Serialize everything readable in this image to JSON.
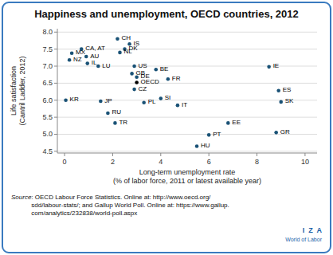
{
  "chart_data": {
    "type": "scatter",
    "title": "Happiness and unemployment, OECD countries, 2012",
    "x_label": "Long-term unemployment rate\n(% of labor force, 2011 or latest available year)",
    "y_label": "Life satisfaction\n(Cantril Ladder, 2012)",
    "xlim": [
      -0.3,
      10.5
    ],
    "ylim": [
      4.45,
      8.1
    ],
    "xticks": [
      0,
      2,
      4,
      6,
      8,
      10
    ],
    "yticks": [
      4.5,
      {
        "value": 5.0,
        "label": "5.0"
      },
      5.5,
      {
        "value": 6.0,
        "label": "6.0"
      },
      6.5,
      {
        "value": 7.0,
        "label": "7.0"
      },
      7.5,
      {
        "value": 8.0,
        "label": "8.0"
      }
    ],
    "grid": true,
    "labels": [
      "CH",
      "IS",
      "DK",
      "CA, AT",
      "NL",
      "MX",
      "AU",
      "NZ",
      "IL",
      "LU",
      "US",
      "BE",
      "GB",
      "DE",
      "FR",
      "OECD",
      "CZ",
      "SI",
      "PL",
      "IT",
      "KR",
      "JP",
      "RU",
      "TR",
      "IE",
      "ES",
      "SK",
      "EE",
      "GR",
      "PT",
      "HU"
    ],
    "x": [
      2.2,
      2.7,
      2.5,
      0.7,
      2.3,
      0.3,
      0.9,
      0.2,
      0.95,
      1.4,
      2.9,
      3.8,
      2.8,
      3.0,
      4.3,
      3.0,
      2.9,
      4.0,
      3.3,
      4.7,
      0.05,
      1.5,
      1.8,
      2.1,
      8.5,
      8.9,
      9.0,
      6.8,
      8.8,
      6.0,
      5.5
    ],
    "values": [
      7.8,
      7.65,
      7.5,
      7.5,
      7.4,
      7.38,
      7.28,
      7.18,
      7.08,
      7.0,
      7.0,
      6.9,
      6.78,
      6.68,
      6.62,
      6.52,
      6.32,
      6.05,
      5.93,
      5.85,
      6.0,
      5.97,
      5.62,
      5.33,
      6.98,
      6.28,
      5.95,
      5.33,
      5.05,
      4.98,
      4.65
    ],
    "colors": [
      "#1a5276",
      "#1a5276",
      "#1a5276",
      "#1a5276",
      "#1a5276",
      "#1a5276",
      "#1a5276",
      "#1a5276",
      "#1a5276",
      "#1a5276",
      "#1a5276",
      "#1a5276",
      "#1a5276",
      "#1a5276",
      "#1a5276",
      "#000000",
      "#1a5276",
      "#1a5276",
      "#1a5276",
      "#1a5276",
      "#1a5276",
      "#1a5276",
      "#1a5276",
      "#1a5276",
      "#1a5276",
      "#1a5276",
      "#1a5276",
      "#1a5276",
      "#1a5276",
      "#1a5276",
      "#1a5276"
    ],
    "annotations": [
      "Source",
      ": OECD Labour Force Statistics. Online at: http://www.oecd.org/\nsdd/labour-stats/; and Gallup World Poll. Online at: https://www.gallup.\ncom/analytics/232838/world-poll.aspx",
      "I  Z  A",
      "World of Labor"
    ]
  }
}
